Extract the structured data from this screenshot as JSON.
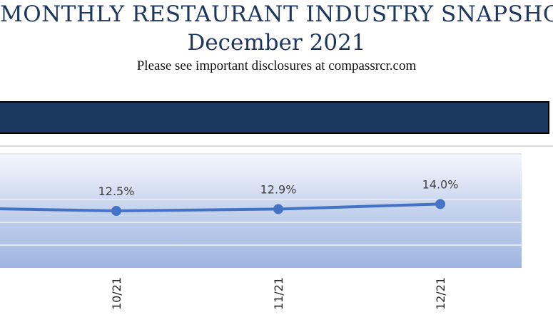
{
  "header": {
    "title": "MONTHLY RESTAURANT INDUSTRY SNAPSHOT",
    "subtitle": "December 2021",
    "disclosure": "Please see important disclosures at compassrcr.com"
  },
  "banner": {
    "text": ""
  },
  "colors": {
    "title": "#1c3660",
    "banner": "#1a3760",
    "series_line": "#4472c4"
  },
  "chart_data": {
    "type": "line",
    "categories": [
      "10/21",
      "11/21",
      "12/21"
    ],
    "values": [
      12.5,
      12.9,
      14.0
    ],
    "data_labels": [
      "12.5%",
      "12.9%",
      "14.0%"
    ],
    "title": "",
    "xlabel": "",
    "ylabel": "",
    "ylim": [
      0,
      25
    ],
    "grid": true,
    "legend": "none"
  }
}
